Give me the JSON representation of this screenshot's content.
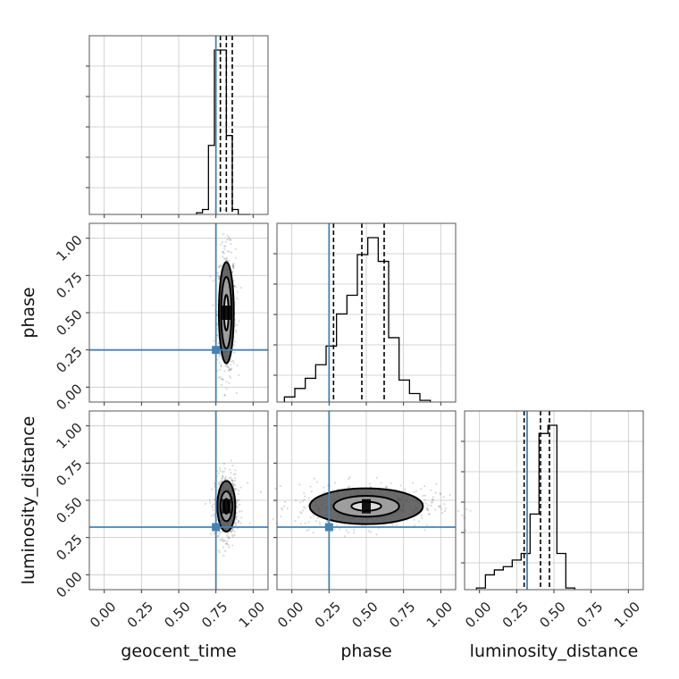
{
  "chart_data": {
    "type": "corner",
    "parameters": [
      "geocent_time",
      "phase",
      "luminosity_distance"
    ],
    "axis_labels": {
      "x": [
        "geocent_time",
        "phase",
        "luminosity_distance"
      ],
      "y": [
        "",
        "phase",
        "luminosity_distance"
      ]
    },
    "tick_labels": [
      "0.00",
      "0.25",
      "0.50",
      "0.75",
      "1.00"
    ],
    "tick_values": [
      0,
      0.25,
      0.5,
      0.75,
      1.0
    ],
    "axis_range": [
      -0.1,
      1.1
    ],
    "grid": true,
    "truths": {
      "geocent_time": 0.75,
      "phase": 0.25,
      "luminosity_distance": 0.32
    },
    "quantiles": {
      "geocent_time": [
        0.78,
        0.82,
        0.86
      ],
      "phase": [
        0.28,
        0.47,
        0.62
      ],
      "luminosity_distance": [
        0.3,
        0.41,
        0.47
      ]
    },
    "histograms": {
      "geocent_time": {
        "bin_edges": [
          0.62,
          0.66,
          0.7,
          0.74,
          0.78,
          0.82,
          0.86,
          0.9,
          0.94,
          0.98
        ],
        "counts": [
          0.01,
          0.03,
          0.42,
          1.0,
          1.0,
          0.48,
          0.03,
          0.0,
          0.0
        ]
      },
      "phase": {
        "bin_edges": [
          -0.05,
          0.02,
          0.09,
          0.16,
          0.23,
          0.3,
          0.37,
          0.44,
          0.51,
          0.58,
          0.65,
          0.72,
          0.79,
          0.86,
          0.93
        ],
        "counts": [
          0.03,
          0.08,
          0.14,
          0.22,
          0.33,
          0.52,
          0.63,
          0.87,
          0.97,
          0.83,
          0.38,
          0.13,
          0.05,
          0.01
        ]
      },
      "luminosity_distance": {
        "bin_edges": [
          -0.02,
          0.04,
          0.1,
          0.16,
          0.22,
          0.28,
          0.34,
          0.4,
          0.46,
          0.52,
          0.58,
          0.64
        ],
        "counts": [
          0.01,
          0.09,
          0.12,
          0.14,
          0.18,
          0.22,
          0.46,
          0.95,
          1.0,
          0.22,
          0.01
        ]
      }
    },
    "contours_2d": [
      {
        "x_param": "geocent_time",
        "y_param": "phase",
        "center": [
          0.82,
          0.5
        ],
        "levels": [
          {
            "halfwidth": [
              0.015,
              0.12
            ]
          },
          {
            "halfwidth": [
              0.035,
              0.24
            ]
          },
          {
            "halfwidth": [
              0.05,
              0.34
            ]
          }
        ]
      },
      {
        "x_param": "geocent_time",
        "y_param": "luminosity_distance",
        "center": [
          0.82,
          0.46
        ],
        "levels": [
          {
            "halfwidth": [
              0.015,
              0.05
            ]
          },
          {
            "halfwidth": [
              0.04,
              0.1
            ]
          },
          {
            "halfwidth": [
              0.06,
              0.17
            ]
          }
        ]
      },
      {
        "x_param": "phase",
        "y_param": "luminosity_distance",
        "center": [
          0.5,
          0.46
        ],
        "levels": [
          {
            "halfwidth": [
              0.1,
              0.03
            ]
          },
          {
            "halfwidth": [
              0.22,
              0.07
            ]
          },
          {
            "halfwidth": [
              0.38,
              0.12
            ]
          }
        ]
      }
    ]
  }
}
